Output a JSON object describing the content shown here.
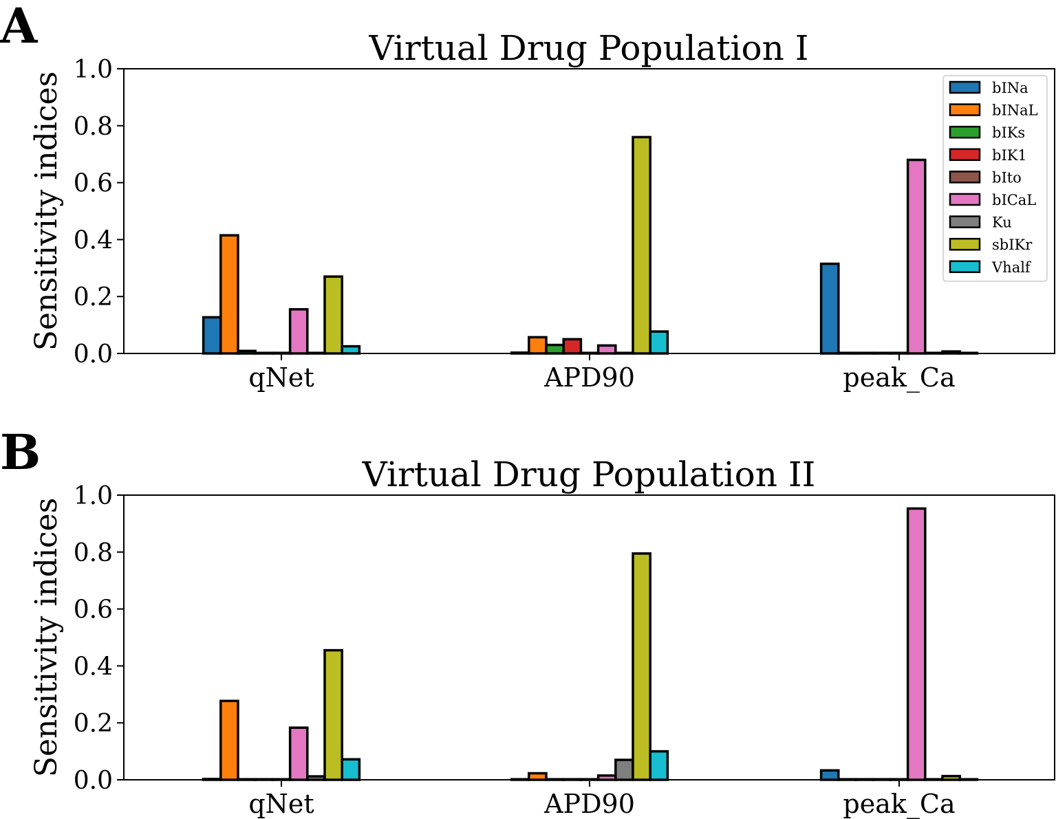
{
  "chart_data": [
    {
      "panel": "A",
      "type": "bar",
      "title": "Virtual Drug Population I",
      "xlabel": "",
      "ylabel": "Sensitivity indices",
      "ylim": [
        0,
        1.0
      ],
      "yticks": [
        "0.0",
        "0.2",
        "0.4",
        "0.6",
        "0.8",
        "1.0"
      ],
      "categories": [
        "qNet",
        "APD90",
        "peak_Ca"
      ],
      "legend": "top-right",
      "series": [
        {
          "name": "bINa",
          "color": "#1f77b4",
          "values": [
            0.127,
            0.003,
            0.315
          ]
        },
        {
          "name": "bINaL",
          "color": "#ff7f0e",
          "values": [
            0.415,
            0.057,
            0.002
          ]
        },
        {
          "name": "bIKs",
          "color": "#2ca02c",
          "values": [
            0.009,
            0.03,
            0.002
          ]
        },
        {
          "name": "bIK1",
          "color": "#d62728",
          "values": [
            0.002,
            0.05,
            0.002
          ]
        },
        {
          "name": "bIto",
          "color": "#8c564b",
          "values": [
            0.002,
            0.002,
            0.002
          ]
        },
        {
          "name": "bICaL",
          "color": "#e377c2",
          "values": [
            0.155,
            0.028,
            0.68
          ]
        },
        {
          "name": "Ku",
          "color": "#7f7f7f",
          "values": [
            0.002,
            0.002,
            0.002
          ]
        },
        {
          "name": "sbIKr",
          "color": "#bcbd22",
          "values": [
            0.27,
            0.76,
            0.007
          ]
        },
        {
          "name": "Vhalf",
          "color": "#17becf",
          "values": [
            0.025,
            0.077,
            0.002
          ]
        }
      ]
    },
    {
      "panel": "B",
      "type": "bar",
      "title": "Virtual Drug Population II",
      "xlabel": "",
      "ylabel": "Sensitivity indices",
      "ylim": [
        0,
        1.0
      ],
      "yticks": [
        "0.0",
        "0.2",
        "0.4",
        "0.6",
        "0.8",
        "1.0"
      ],
      "categories": [
        "qNet",
        "APD90",
        "peak_Ca"
      ],
      "legend": "none",
      "series": [
        {
          "name": "bINa",
          "color": "#1f77b4",
          "values": [
            0.003,
            0.002,
            0.033
          ]
        },
        {
          "name": "bINaL",
          "color": "#ff7f0e",
          "values": [
            0.277,
            0.023,
            0.002
          ]
        },
        {
          "name": "bIKs",
          "color": "#2ca02c",
          "values": [
            0.002,
            0.002,
            0.002
          ]
        },
        {
          "name": "bIK1",
          "color": "#d62728",
          "values": [
            0.002,
            0.002,
            0.002
          ]
        },
        {
          "name": "bIto",
          "color": "#8c564b",
          "values": [
            0.002,
            0.002,
            0.002
          ]
        },
        {
          "name": "bICaL",
          "color": "#e377c2",
          "values": [
            0.183,
            0.015,
            0.953
          ]
        },
        {
          "name": "Ku",
          "color": "#7f7f7f",
          "values": [
            0.012,
            0.07,
            0.002
          ]
        },
        {
          "name": "sbIKr",
          "color": "#bcbd22",
          "values": [
            0.455,
            0.795,
            0.013
          ]
        },
        {
          "name": "Vhalf",
          "color": "#17becf",
          "values": [
            0.072,
            0.1,
            0.002
          ]
        }
      ]
    }
  ]
}
